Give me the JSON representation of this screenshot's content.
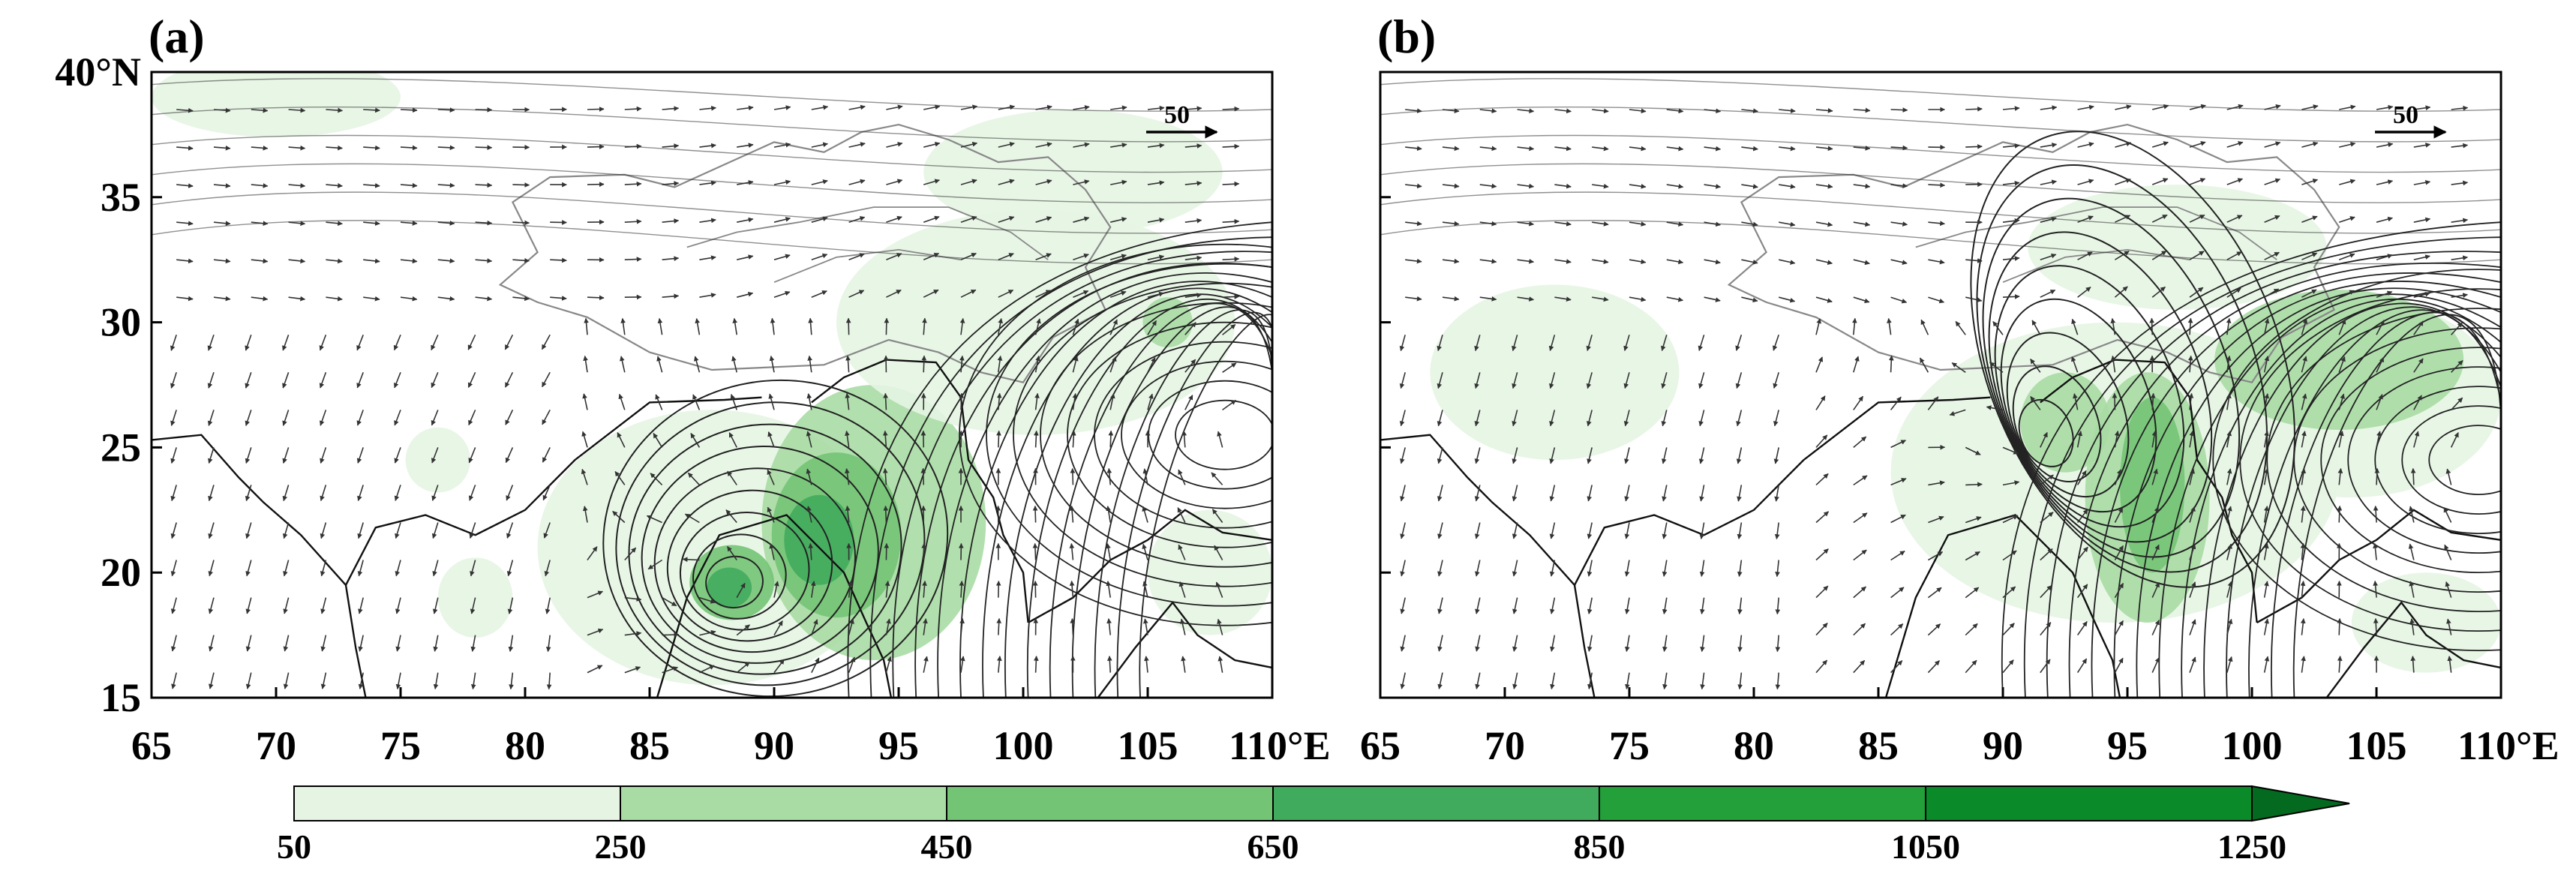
{
  "figure": {
    "panels": [
      {
        "id": "a",
        "letter": "(a)",
        "x_ticks": [
          "65",
          "70",
          "75",
          "80",
          "85",
          "90",
          "95",
          "100",
          "105",
          "110°E"
        ],
        "y_ticks": [
          "40°N",
          "35",
          "30",
          "25",
          "20",
          "15"
        ],
        "reference_vector": "50",
        "moisture_blobs": [
          {
            "lon": 87.5,
            "lat": 21,
            "rlon": 7,
            "rlat": 5.5,
            "level": 0
          },
          {
            "lon": 94,
            "lat": 22,
            "rlon": 4.5,
            "rlat": 5.5,
            "level": 1
          },
          {
            "lon": 92.5,
            "lat": 21.5,
            "rlon": 2.6,
            "rlat": 3.3,
            "level": 2
          },
          {
            "lon": 91.8,
            "lat": 21.3,
            "rlon": 1.4,
            "rlat": 1.8,
            "level": 3
          },
          {
            "lon": 88.3,
            "lat": 19.6,
            "rlon": 1.7,
            "rlat": 1.5,
            "level": 2
          },
          {
            "lon": 88.2,
            "lat": 19.4,
            "rlon": 0.9,
            "rlat": 0.8,
            "level": 3
          },
          {
            "lon": 100.5,
            "lat": 30,
            "rlon": 8,
            "rlat": 4.5,
            "level": 0
          },
          {
            "lon": 102,
            "lat": 36,
            "rlon": 6,
            "rlat": 2.5,
            "level": 0
          },
          {
            "lon": 105.8,
            "lat": 30,
            "rlon": 1,
            "rlat": 1,
            "level": 1
          },
          {
            "lon": 70,
            "lat": 39,
            "rlon": 5,
            "rlat": 1.6,
            "level": 0
          },
          {
            "lon": 76.5,
            "lat": 24.5,
            "rlon": 1.3,
            "rlat": 1.3,
            "level": 0
          },
          {
            "lon": 78,
            "lat": 19,
            "rlon": 1.5,
            "rlat": 1.6,
            "level": 0
          },
          {
            "lon": 107.5,
            "lat": 20,
            "rlon": 2.5,
            "rlat": 2.5,
            "level": 0
          }
        ],
        "circulation": {
          "lon": 88.2,
          "lat": 19.4
        },
        "anticyclone": {
          "lon": 107.5,
          "lat": 25.5
        }
      },
      {
        "id": "b",
        "letter": "(b)",
        "x_ticks": [
          "65",
          "70",
          "75",
          "80",
          "85",
          "90",
          "95",
          "100",
          "105",
          "110°E"
        ],
        "y_ticks": [],
        "reference_vector": "50",
        "moisture_blobs": [
          {
            "lon": 94.5,
            "lat": 24,
            "rlon": 9,
            "rlat": 6,
            "level": 0
          },
          {
            "lon": 104,
            "lat": 27,
            "rlon": 6,
            "rlat": 4,
            "level": 0
          },
          {
            "lon": 95.8,
            "lat": 23,
            "rlon": 2.5,
            "rlat": 5,
            "level": 1
          },
          {
            "lon": 96,
            "lat": 23.5,
            "rlon": 1.3,
            "rlat": 3.5,
            "level": 2
          },
          {
            "lon": 103.5,
            "lat": 28.5,
            "rlon": 5,
            "rlat": 2.8,
            "level": 1
          },
          {
            "lon": 92.5,
            "lat": 26,
            "rlon": 1.8,
            "rlat": 2,
            "level": 1
          },
          {
            "lon": 72,
            "lat": 28,
            "rlon": 5,
            "rlat": 3.5,
            "level": 0
          },
          {
            "lon": 97,
            "lat": 33,
            "rlon": 6,
            "rlat": 2.5,
            "level": 0
          },
          {
            "lon": 107,
            "lat": 18,
            "rlon": 3,
            "rlat": 2,
            "level": 0
          }
        ],
        "circulation": {
          "lon": 91.3,
          "lat": 25.2
        },
        "anticyclone": {
          "lon": 108.5,
          "lat": 24.5
        }
      }
    ],
    "colorbar": {
      "labels": [
        "50",
        "250",
        "450",
        "650",
        "850",
        "1050",
        "1250"
      ],
      "colors": [
        "#e6f5e3",
        "#a9dca4",
        "#74c476",
        "#41ab5d",
        "#23a039",
        "#0b8a2a",
        "#046a1f"
      ]
    },
    "colors": {
      "vector": "#333333",
      "streamline": "#222222",
      "border": "#111111",
      "plateau_outline": "#888888"
    },
    "axes": {
      "lon_min": 65,
      "lon_max": 110,
      "lat_min": 15,
      "lat_max": 40
    }
  }
}
